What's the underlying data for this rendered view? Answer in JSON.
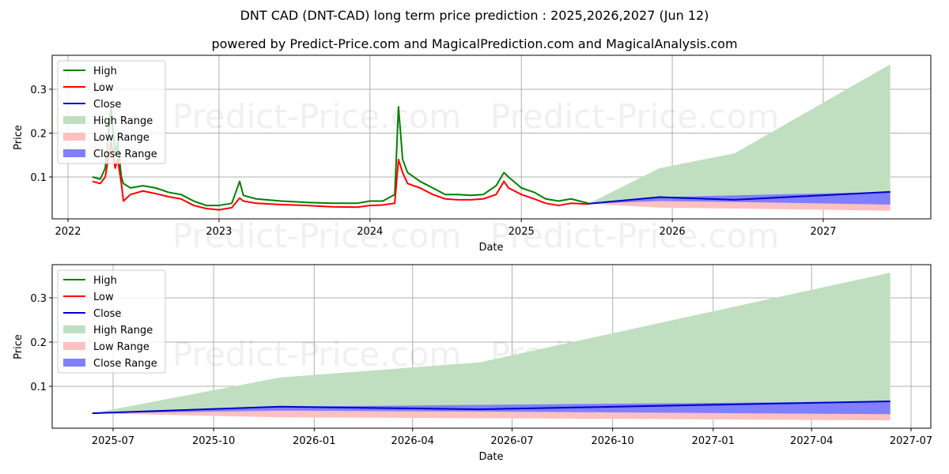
{
  "header": {
    "title": "DNT CAD (DNT-CAD) long term price prediction : 2025,2026,2027 (Jun 12)",
    "subtitle": "powered by Predict-Price.com and MagicalPrediction.com and MagicalAnalysis.com"
  },
  "watermark": "Predict-Price.com",
  "colors": {
    "high": "#008000",
    "low": "#ff0000",
    "close": "#0000cc",
    "high_range": "#c0dfc0",
    "low_range": "#ffc0c0",
    "close_range": "#8080ff",
    "grid": "#b0b0b0"
  },
  "legend": [
    "High",
    "Low",
    "Close",
    "High Range",
    "Low Range",
    "Close Range"
  ],
  "chart_data": [
    {
      "type": "line",
      "title": "DNT CAD (DNT-CAD) long term price prediction : 2025,2026,2027 (Jun 12)",
      "xlabel": "Date",
      "ylabel": "Price",
      "x_ticks": [
        "2022",
        "2023",
        "2024",
        "2025",
        "2026",
        "2027"
      ],
      "y_ticks": [
        "0.1",
        "0.2",
        "0.3"
      ],
      "ylim": [
        0.0,
        0.37
      ],
      "grid": true,
      "legend_position": "upper left",
      "history": {
        "x": [
          "2022-03",
          "2022-03-20",
          "2022-04",
          "2022-04-15",
          "2022-04-25",
          "2022-05-01",
          "2022-05-10",
          "2022-05-15",
          "2022-06",
          "2022-07",
          "2022-08",
          "2022-09",
          "2022-10",
          "2022-11",
          "2022-12",
          "2023-01",
          "2023-02",
          "2023-02-20",
          "2023-03",
          "2023-04",
          "2023-06",
          "2023-08",
          "2023-10",
          "2023-12",
          "2024-01",
          "2024-02",
          "2024-03-01",
          "2024-03-10",
          "2024-03-20",
          "2024-04",
          "2024-05",
          "2024-06",
          "2024-07",
          "2024-08",
          "2024-09",
          "2024-10",
          "2024-11",
          "2024-11-20",
          "2024-12",
          "2025-01",
          "2025-02",
          "2025-03",
          "2025-04",
          "2025-05",
          "2025-06-12"
        ],
        "high": [
          0.1,
          0.095,
          0.12,
          0.26,
          0.15,
          0.18,
          0.1,
          0.085,
          0.075,
          0.08,
          0.075,
          0.065,
          0.06,
          0.045,
          0.035,
          0.035,
          0.04,
          0.09,
          0.058,
          0.05,
          0.045,
          0.042,
          0.04,
          0.04,
          0.045,
          0.045,
          0.06,
          0.26,
          0.14,
          0.11,
          0.09,
          0.075,
          0.06,
          0.06,
          0.058,
          0.06,
          0.08,
          0.11,
          0.1,
          0.075,
          0.065,
          0.05,
          0.045,
          0.05,
          0.04
        ],
        "low": [
          0.09,
          0.085,
          0.1,
          0.18,
          0.12,
          0.14,
          0.085,
          0.045,
          0.06,
          0.068,
          0.062,
          0.055,
          0.05,
          0.035,
          0.028,
          0.025,
          0.03,
          0.052,
          0.045,
          0.04,
          0.037,
          0.035,
          0.032,
          0.031,
          0.035,
          0.036,
          0.04,
          0.14,
          0.11,
          0.085,
          0.075,
          0.06,
          0.05,
          0.048,
          0.048,
          0.05,
          0.06,
          0.09,
          0.075,
          0.06,
          0.05,
          0.04,
          0.035,
          0.04,
          0.038
        ]
      },
      "forecast": {
        "x": [
          "2025-06-12",
          "2025-12-01",
          "2026-06-01",
          "2027-06-12"
        ],
        "close": [
          0.039,
          0.054,
          0.048,
          0.066
        ],
        "high_range_upper": [
          0.039,
          0.12,
          0.154,
          0.357
        ],
        "close_range_upper": [
          0.039,
          0.054,
          0.058,
          0.066
        ],
        "close_range_lower": [
          0.039,
          0.045,
          0.043,
          0.037
        ],
        "low_range_lower": [
          0.039,
          0.03,
          0.028,
          0.023
        ]
      }
    },
    {
      "type": "area",
      "xlabel": "Date",
      "ylabel": "Price",
      "x_ticks": [
        "2025-07",
        "2025-10",
        "2026-01",
        "2026-04",
        "2026-07",
        "2026-10",
        "2027-01",
        "2027-04",
        "2027-07"
      ],
      "y_ticks": [
        "0.1",
        "0.2",
        "0.3"
      ],
      "ylim": [
        0.0,
        0.37
      ],
      "grid": true,
      "legend_position": "upper left",
      "forecast": {
        "x": [
          "2025-06-12",
          "2025-12-01",
          "2026-06-01",
          "2027-06-12"
        ],
        "close": [
          0.039,
          0.054,
          0.048,
          0.066
        ],
        "high_range_upper": [
          0.039,
          0.12,
          0.154,
          0.357
        ],
        "close_range_upper": [
          0.039,
          0.054,
          0.058,
          0.066
        ],
        "close_range_lower": [
          0.039,
          0.045,
          0.043,
          0.037
        ],
        "low_range_lower": [
          0.039,
          0.03,
          0.028,
          0.023
        ]
      }
    }
  ]
}
